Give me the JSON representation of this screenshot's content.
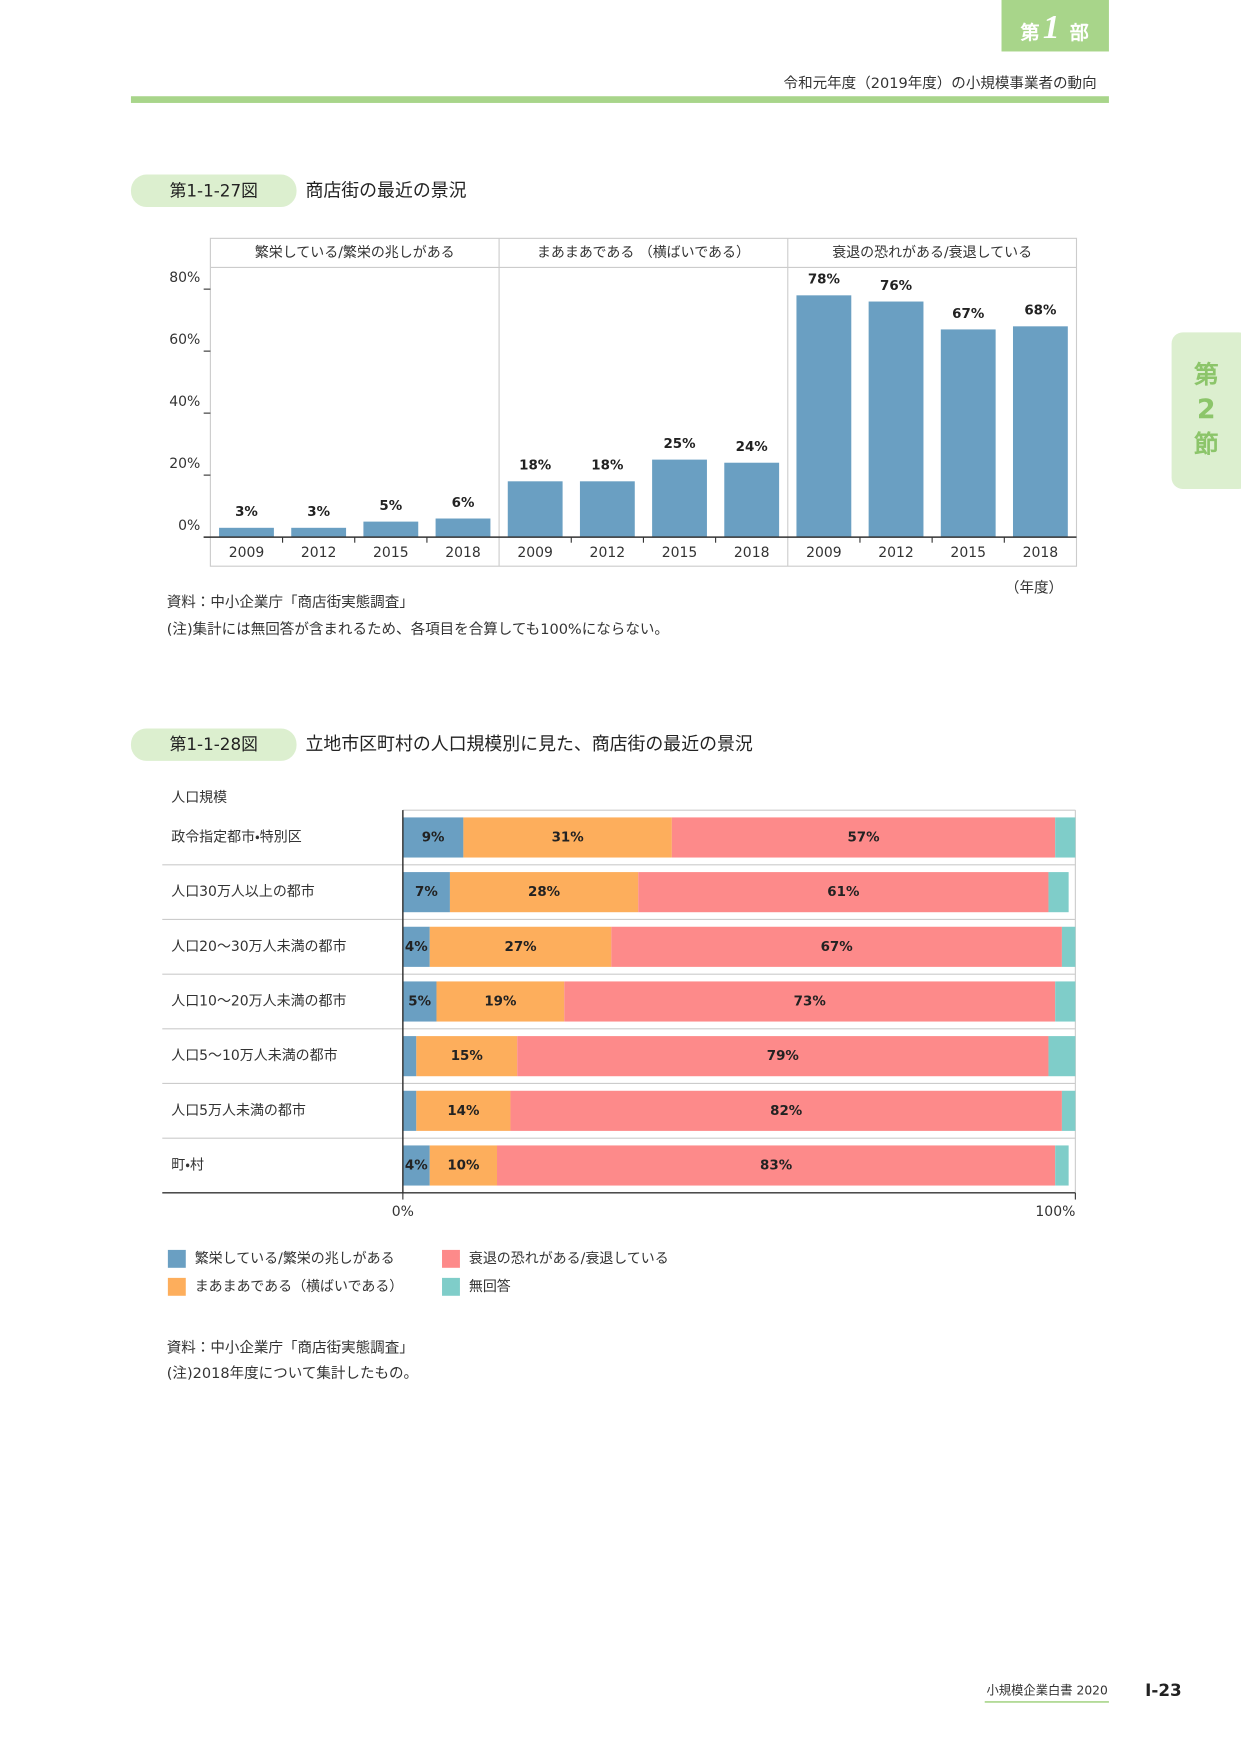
{
  "header": {
    "part_tab": [
      "第",
      "1",
      "部"
    ],
    "subtitle": "令和元年度（2019年度）の小規模事業者の動向"
  },
  "section_tab": [
    "第",
    "2",
    "節"
  ],
  "chart_data": [
    {
      "type": "bar",
      "label": "第1-1-27図",
      "title": "商店街の最近の景況",
      "color": "#6a9fc2",
      "facets": [
        {
          "title": "繁栄している/繁栄の兆しがある",
          "categories": [
            "2009",
            "2012",
            "2015",
            "2018"
          ],
          "values": [
            3,
            3,
            5,
            6
          ],
          "value_labels": [
            "3%",
            "3%",
            "5%",
            "6%"
          ]
        },
        {
          "title": "まあまあである （横ばいである）",
          "categories": [
            "2009",
            "2012",
            "2015",
            "2018"
          ],
          "values": [
            18,
            18,
            25,
            24
          ],
          "value_labels": [
            "18%",
            "18%",
            "25%",
            "24%"
          ]
        },
        {
          "title": "衰退の恐れがある/衰退している",
          "categories": [
            "2009",
            "2012",
            "2015",
            "2018"
          ],
          "values": [
            78,
            76,
            67,
            68
          ],
          "value_labels": [
            "78%",
            "76%",
            "67%",
            "68%"
          ]
        }
      ],
      "ylim": [
        0,
        87
      ],
      "yticks": [
        {
          "value": 0,
          "label": "0%"
        },
        {
          "value": 20,
          "label": "20%"
        },
        {
          "value": 40,
          "label": "40%"
        },
        {
          "value": 60,
          "label": "60%"
        },
        {
          "value": 80,
          "label": "80%"
        }
      ],
      "x_label": "（年度）",
      "source": "資料：中小企業庁「商店街実態調査」",
      "note": "(注)集計には無回答が含まれるため、各項目を合算しても100%にならない。"
    },
    {
      "type": "stacked-barh",
      "label": "第1-1-28図",
      "title": "立地市区町村の人口規模別に見た、商店街の最近の景況",
      "y_label": "人口規模",
      "categories": [
        "政令指定都市・特別区",
        "人口30万人以上の都市",
        "人口20～30万人未満の都市",
        "人口10～20万人未満の都市",
        "人口5～10万人未満の都市",
        "人口5万人未満の都市",
        "町・村"
      ],
      "series": [
        {
          "name": "繁栄している/繁栄の兆しがある",
          "color": "#6a9fc2",
          "values": [
            9,
            7,
            4,
            5,
            2,
            2,
            4
          ],
          "value_labels": [
            "9%",
            "7%",
            "4%",
            "5%",
            null,
            null,
            "4%"
          ]
        },
        {
          "name": "まあまあである（横ばいである）",
          "color": "#fdae5c",
          "values": [
            31,
            28,
            27,
            19,
            15,
            14,
            10
          ],
          "value_labels": [
            "31%",
            "28%",
            "27%",
            "19%",
            "15%",
            "14%",
            "10%"
          ]
        },
        {
          "name": "衰退の恐れがある/衰退している",
          "color": "#fd8a8a",
          "values": [
            57,
            61,
            67,
            73,
            79,
            82,
            83
          ],
          "value_labels": [
            "57%",
            "61%",
            "67%",
            "73%",
            "79%",
            "82%",
            "83%"
          ]
        },
        {
          "name": "無回答",
          "color": "#7fcdc9",
          "values": [
            3,
            3,
            2,
            3,
            4,
            2,
            2
          ],
          "value_labels": [
            null,
            null,
            null,
            null,
            null,
            null,
            null
          ]
        }
      ],
      "xlim": [
        0,
        100
      ],
      "xticks": [
        {
          "value": 0,
          "label": "0%"
        },
        {
          "value": 100,
          "label": "100%"
        }
      ],
      "source": "資料：中小企業庁「商店街実態調査」",
      "note": "(注)2018年度について集計したもの。"
    }
  ],
  "footer": {
    "book": "小規模企業白書 2020",
    "page": "I-23"
  }
}
